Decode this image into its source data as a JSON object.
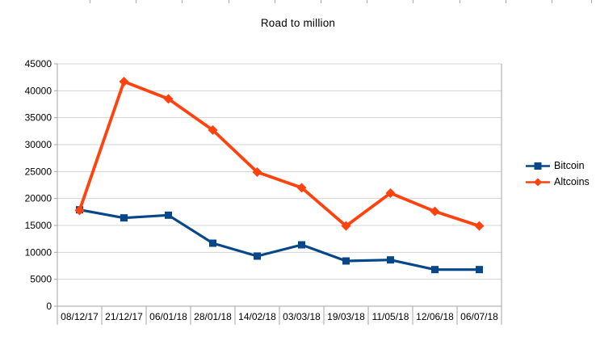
{
  "title": "Road to million",
  "colors": {
    "bitcoin": "#06478a",
    "altcoins": "#ff420e",
    "gridline": "#d3d3d3",
    "axis": "#a6a6a6",
    "label_text": "#000000",
    "background": "#ffffff"
  },
  "chart_data": {
    "type": "line",
    "title": "Road to million",
    "categories": [
      "08/12/17",
      "21/12/17",
      "06/01/18",
      "28/01/18",
      "14/02/18",
      "03/03/18",
      "19/03/18",
      "11/05/18",
      "12/06/18",
      "06/07/18"
    ],
    "series": [
      {
        "name": "Bitcoin",
        "marker": "square",
        "color": "#06478a",
        "line_width": 3.2,
        "values": [
          17900,
          16400,
          16900,
          11700,
          9300,
          11400,
          8400,
          8600,
          6800,
          6800
        ]
      },
      {
        "name": "Altcoins",
        "marker": "diamond",
        "color": "#ff420e",
        "line_width": 3.8,
        "values": [
          17800,
          41700,
          38500,
          32700,
          24900,
          22000,
          14900,
          21000,
          17600,
          14900
        ]
      }
    ],
    "xlabel": "",
    "ylabel": "",
    "ylim": [
      0,
      45000
    ],
    "ytick_step": 5000,
    "ytick_labels": [
      "0",
      "5000",
      "10000",
      "15000",
      "20000",
      "25000",
      "30000",
      "35000",
      "40000",
      "45000"
    ],
    "grid": true,
    "legend_position": "right",
    "legend_labels": [
      "Bitcoin",
      "Altcoins"
    ]
  }
}
